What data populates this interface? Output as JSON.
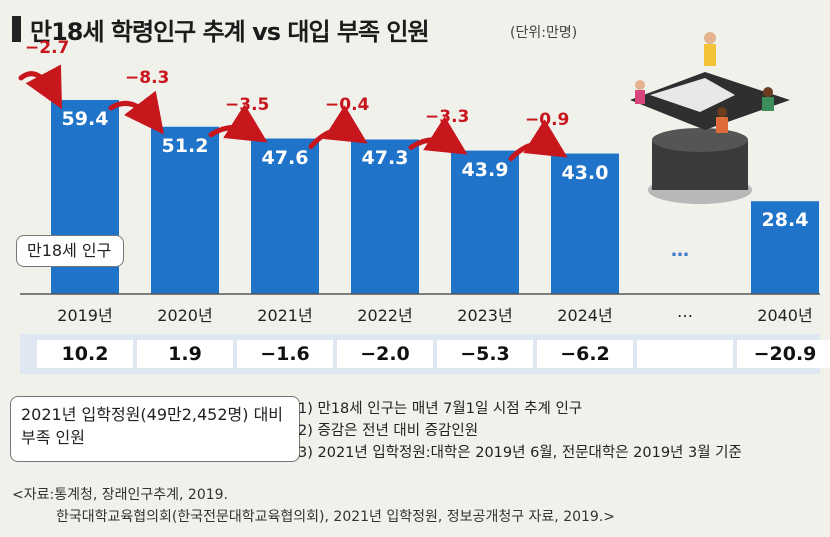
{
  "header": {
    "title": "만18세 학령인구 추계 vs 대입 부족 인원",
    "unit": "(단위:만명)"
  },
  "chart_data": {
    "type": "bar",
    "categories": [
      "2019년",
      "2020년",
      "2021년",
      "2022년",
      "2023년",
      "2024년",
      "…",
      "2040년"
    ],
    "values": [
      59.4,
      51.2,
      47.6,
      47.3,
      43.9,
      43.0,
      null,
      28.4
    ],
    "value_labels": [
      "59.4",
      "51.2",
      "47.6",
      "47.3",
      "43.9",
      "43.0",
      "",
      "28.4"
    ],
    "changes": [
      "−2.7",
      "−8.3",
      "−3.5",
      "−0.4",
      "−3.3",
      "−0.9",
      "",
      ""
    ],
    "shortfall": [
      "10.2",
      "1.9",
      "−1.6",
      "−2.0",
      "−5.3",
      "−6.2",
      "",
      "−20.9"
    ],
    "ylim": [
      0,
      60
    ],
    "bar_color": "#1f73c9",
    "change_color": "#c8161d",
    "legend_population": "만18세 인구",
    "legend_shortfall": "2021년 입학정원(49만2,452명) 대비 부족 인원",
    "ellipsis_mark": "…"
  },
  "notes": [
    "1) 만18세 인구는 매년 7월1일 시점 추계 인구",
    "2) 증감은 전년 대비 증감인원",
    "3) 2021년 입학정원:대학은 2019년 6월, 전문대학은 2019년 3월 기준"
  ],
  "source": {
    "line1": "<자료:통계청, 장래인구추계, 2019.",
    "line2": "한국대학교육협의회(한국전문대학교육협의회), 2021년 입학정원, 정보공개청구 자료, 2019.>"
  },
  "illustration": {
    "icon": "graduation-cap-students-illustration"
  }
}
